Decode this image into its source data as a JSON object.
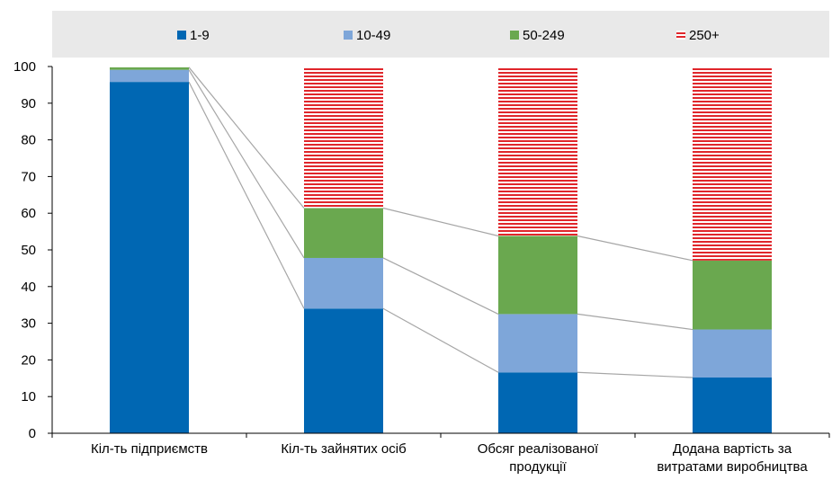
{
  "chart_data": {
    "type": "bar",
    "stacked": true,
    "categories": [
      [
        "Кіл-ть підприємств"
      ],
      [
        "Кіл-ть зайнятих осіб"
      ],
      [
        "Обсяг реалізованої",
        "продукції"
      ],
      [
        "Додана вартість за",
        "витратами виробництва"
      ]
    ],
    "series": [
      {
        "name": "1-9",
        "color": "#0067b3",
        "pattern": "solid",
        "values": [
          95.8,
          34.0,
          16.6,
          15.2
        ]
      },
      {
        "name": "10-49",
        "color": "#7ea6d9",
        "pattern": "solid",
        "values": [
          3.3,
          13.8,
          15.9,
          13.1
        ]
      },
      {
        "name": "50-249",
        "color": "#6aa84f",
        "pattern": "solid",
        "values": [
          0.7,
          13.6,
          21.3,
          18.8
        ]
      },
      {
        "name": "250+",
        "color": "#e0262b",
        "pattern": "striped",
        "values": [
          0.2,
          38.6,
          46.2,
          52.9
        ]
      }
    ],
    "ylim": [
      0,
      100
    ],
    "yticks": [
      0,
      10,
      20,
      30,
      40,
      50,
      60,
      70,
      80,
      90,
      100
    ],
    "legend_position": "top",
    "grid": false,
    "connector_lines": true,
    "connector_color": "#a6a6a6"
  }
}
